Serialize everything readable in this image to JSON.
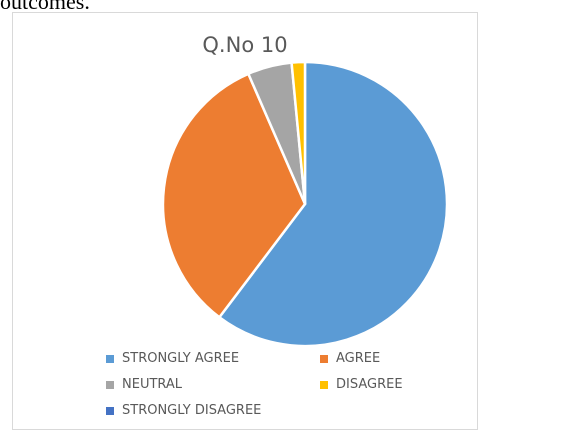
{
  "page": {
    "top_text": "outcomes."
  },
  "chart_data": {
    "type": "pie",
    "title": "Q.No 10",
    "categories": [
      "STRONGLY AGREE",
      "AGREE",
      "NEUTRAL",
      "DISAGREE",
      "STRONGLY DISAGREE"
    ],
    "values": [
      60,
      33,
      5,
      1.5,
      0
    ],
    "colors": [
      "#5B9BD5",
      "#ED7D31",
      "#A5A5A5",
      "#FFC000",
      "#4472C4"
    ],
    "legend_position": "bottom",
    "start_angle": "top",
    "direction": "clockwise"
  }
}
